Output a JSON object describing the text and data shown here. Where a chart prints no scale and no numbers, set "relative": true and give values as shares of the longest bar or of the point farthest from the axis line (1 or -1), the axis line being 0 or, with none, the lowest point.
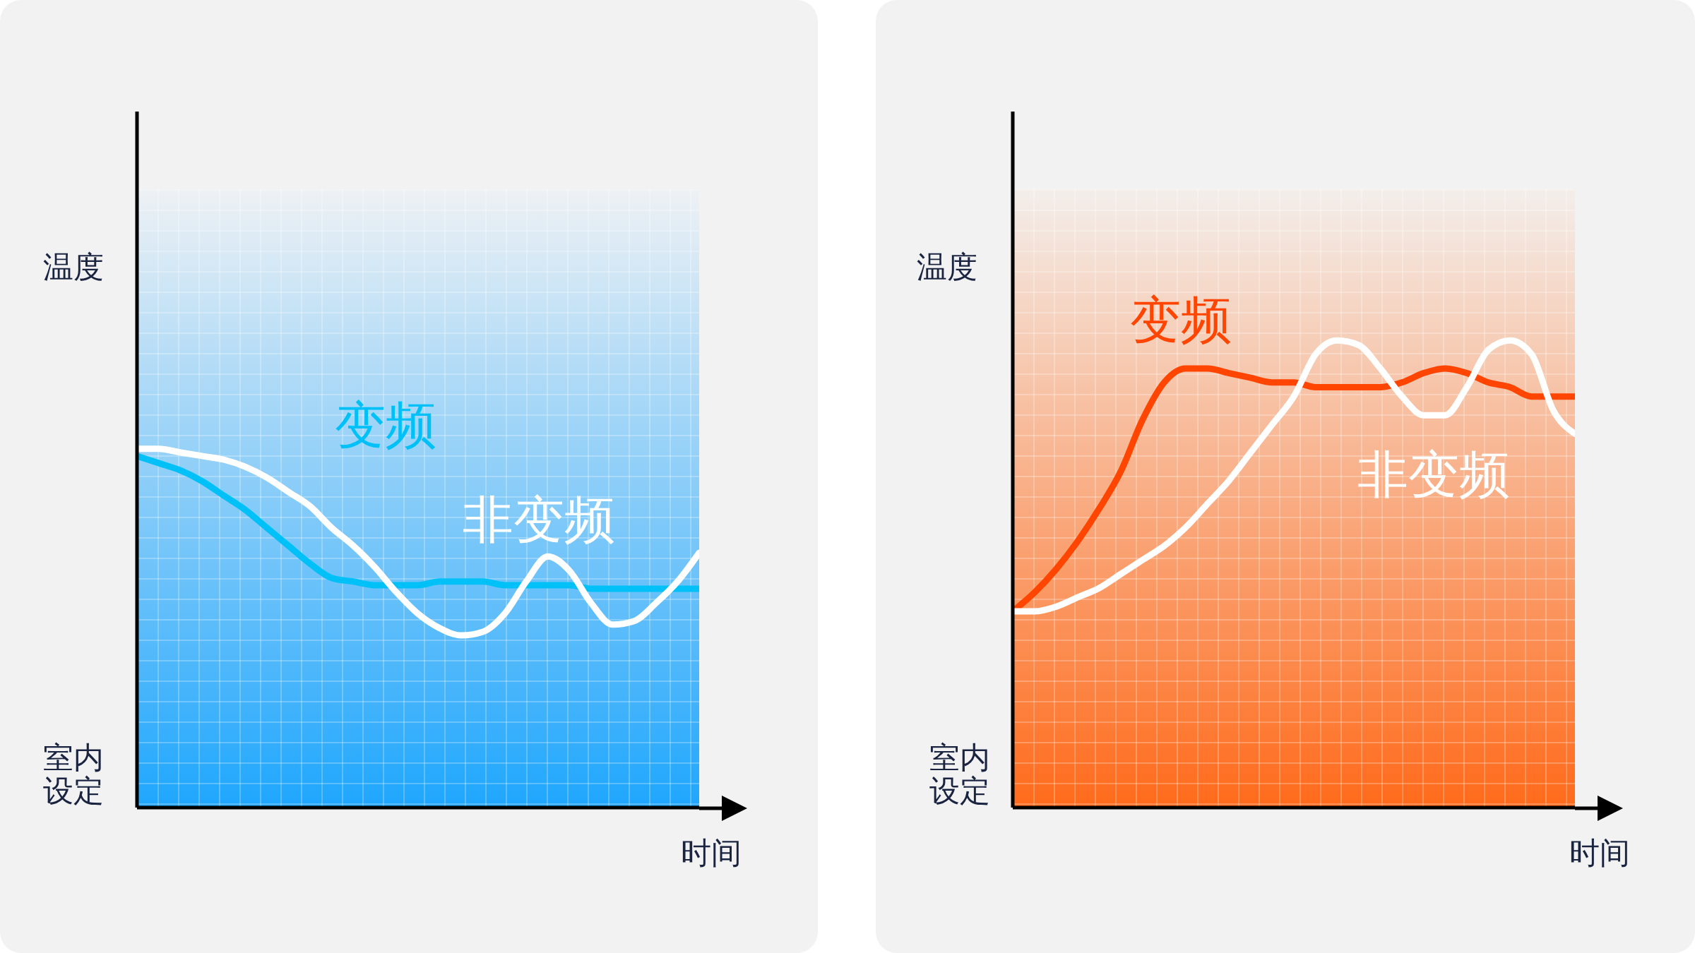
{
  "chart_data": [
    {
      "type": "line",
      "relative": true,
      "ylabel": "温度",
      "xlabel": "时间",
      "annotations": [
        "室内设定"
      ],
      "categories": [
        null,
        null,
        null,
        null,
        null,
        null,
        null,
        null,
        null,
        null,
        null,
        null,
        null,
        null,
        null,
        null,
        null,
        null,
        null,
        null,
        null,
        null,
        null,
        null,
        null,
        null,
        null
      ],
      "series": [
        {
          "name": "变频",
          "color": "#00c0f8",
          "values": [
            0.98,
            0.96,
            0.94,
            0.91,
            0.87,
            0.83,
            0.78,
            0.73,
            0.68,
            0.64,
            0.63,
            0.62,
            0.62,
            0.62,
            0.63,
            0.63,
            0.63,
            0.62,
            0.62,
            0.62,
            0.62,
            0.61,
            0.61,
            0.61,
            0.61,
            0.61,
            0.61
          ]
        },
        {
          "name": "非变频",
          "color": "#ffffff",
          "values": [
            1,
            1,
            0.99,
            0.98,
            0.97,
            0.95,
            0.92,
            0.88,
            0.84,
            0.78,
            0.73,
            0.67,
            0.6,
            0.54,
            0.5,
            0.48,
            0.49,
            0.54,
            0.63,
            0.7,
            0.66,
            0.57,
            0.51,
            0.52,
            0.57,
            0.63,
            0.71
          ]
        }
      ]
    },
    {
      "type": "line",
      "relative": true,
      "ylabel": "温度",
      "xlabel": "时间",
      "annotations": [
        "室内设定"
      ],
      "categories": [
        null,
        null,
        null,
        null,
        null,
        null,
        null,
        null,
        null,
        null,
        null,
        null,
        null,
        null,
        null,
        null,
        null,
        null,
        null,
        null,
        null,
        null,
        null,
        null,
        null,
        null,
        null
      ],
      "series": [
        {
          "name": "变频",
          "color": "#ff4500",
          "values": [
            0.42,
            0.46,
            0.51,
            0.57,
            0.64,
            0.72,
            0.83,
            0.91,
            0.94,
            0.94,
            0.93,
            0.92,
            0.91,
            0.91,
            0.9,
            0.9,
            0.9,
            0.9,
            0.91,
            0.93,
            0.94,
            0.93,
            0.91,
            0.9,
            0.88,
            0.88,
            0.88
          ]
        },
        {
          "name": "非变频",
          "color": "#ffffff",
          "values": [
            0.42,
            0.42,
            0.43,
            0.45,
            0.47,
            0.5,
            0.53,
            0.56,
            0.6,
            0.65,
            0.7,
            0.76,
            0.82,
            0.88,
            0.97,
            1,
            0.99,
            0.94,
            0.88,
            0.84,
            0.84,
            0.9,
            0.98,
            1,
            0.97,
            0.85,
            0.8
          ]
        }
      ]
    }
  ]
}
